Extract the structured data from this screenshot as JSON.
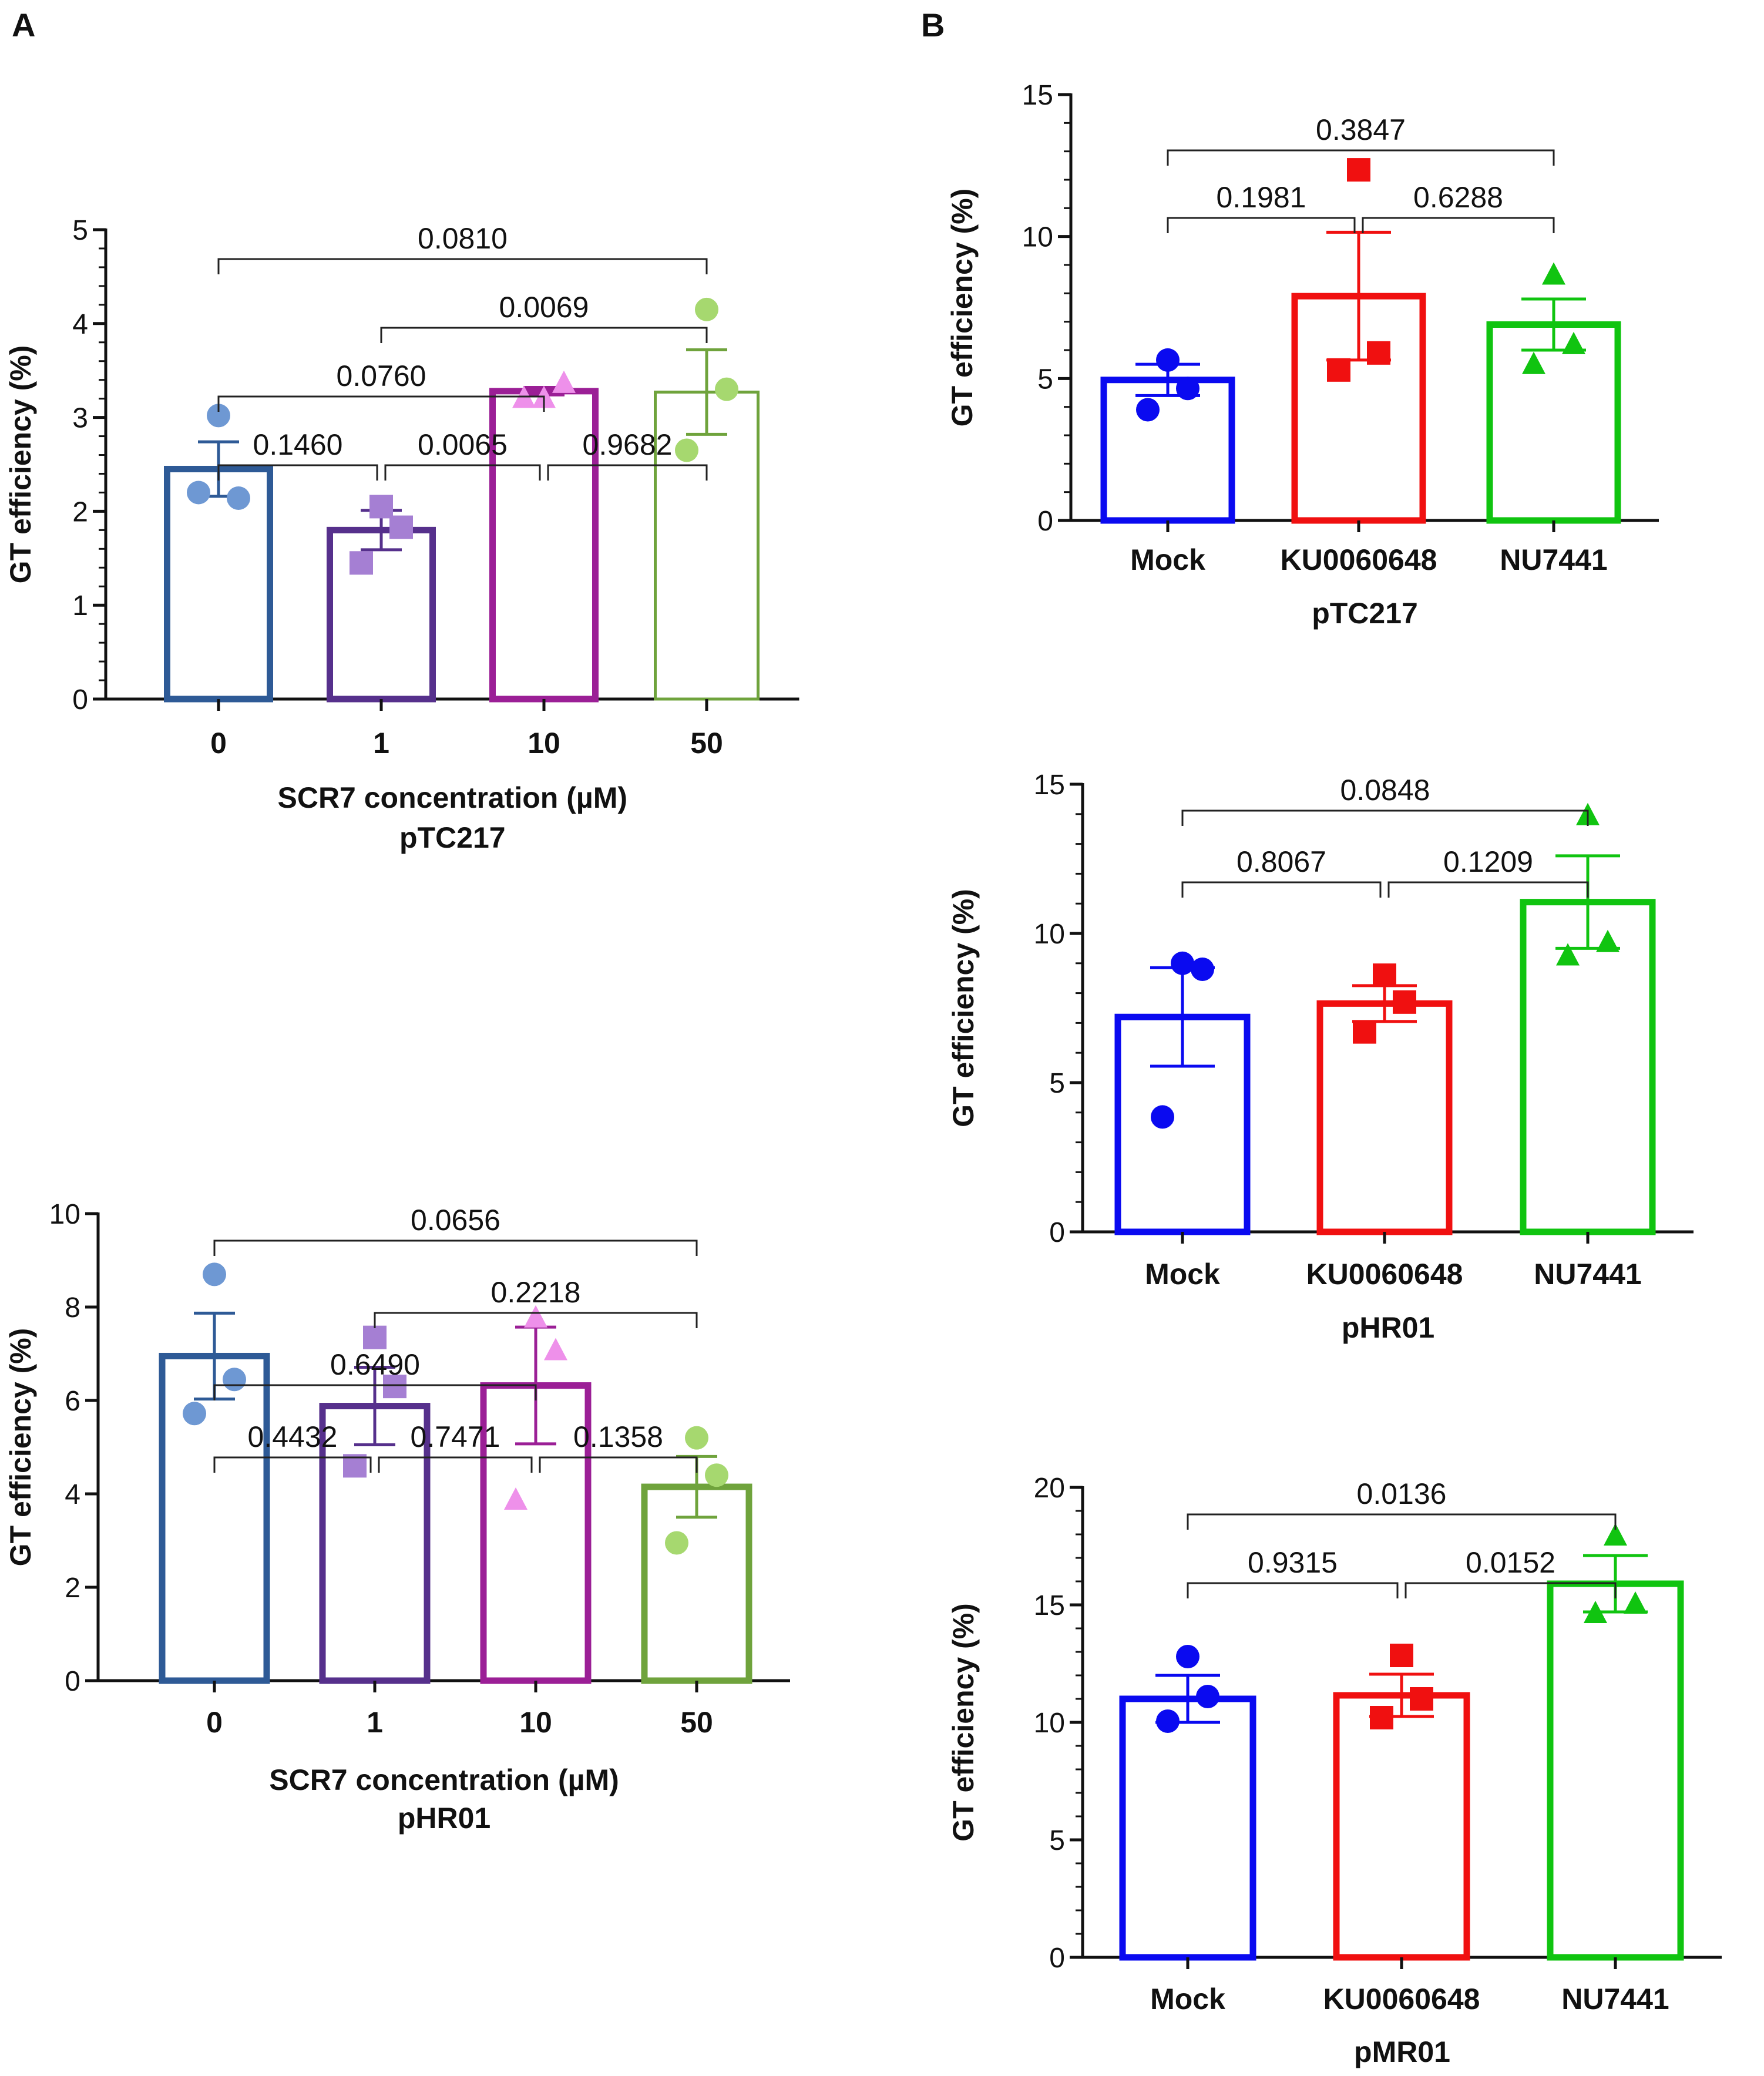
{
  "panel_labels": [
    "A",
    "B"
  ],
  "colors": {
    "A_bars": [
      "#2E5A96",
      "#56308C",
      "#9B1F96",
      "#6FA33C"
    ],
    "A_points": [
      "#6E98D3",
      "#A57FD3",
      "#EE90EA",
      "#A6D86F"
    ],
    "B_bars": [
      "#0A0AF0",
      "#F01010",
      "#10C410"
    ]
  },
  "chart_data": [
    {
      "id": "A1",
      "type": "bar",
      "title": "",
      "subtitle": "pTC217",
      "xlabel": "SCR7 concentration (µM)",
      "ylabel": "GT efficiency (%)",
      "categories": [
        "0",
        "1",
        "10",
        "50"
      ],
      "values": [
        2.45,
        1.8,
        3.28,
        3.27
      ],
      "sem": [
        0.29,
        0.21,
        0.04,
        0.45
      ],
      "points": [
        [
          3.02,
          2.14,
          2.2
        ],
        [
          2.05,
          1.83,
          1.45
        ],
        [
          3.22,
          3.38,
          3.22
        ],
        [
          4.15,
          3.3,
          2.65
        ]
      ],
      "markers": [
        "circle",
        "square",
        "triangle",
        "circle"
      ],
      "ylim": [
        0,
        5
      ],
      "yticks": [
        "0",
        "1",
        "2",
        "3",
        "4",
        "5"
      ],
      "minor_ticks": true,
      "comparisons": [
        {
          "from": 0,
          "to": 1,
          "label": "0.1460",
          "level": 0
        },
        {
          "from": 1,
          "to": 2,
          "label": "0.0065",
          "level": 0
        },
        {
          "from": 2,
          "to": 3,
          "label": "0.9682",
          "level": 0
        },
        {
          "from": 0,
          "to": 2,
          "label": "0.0760",
          "level": 1
        },
        {
          "from": 1,
          "to": 3,
          "label": "0.0069",
          "level": 2
        },
        {
          "from": 0,
          "to": 3,
          "label": "0.0810",
          "level": 3
        }
      ]
    },
    {
      "id": "A2",
      "type": "bar",
      "title": "",
      "subtitle": "pHR01",
      "xlabel": "SCR7 concentration (µM)",
      "ylabel": "GT efficiency (%)",
      "categories": [
        "0",
        "1",
        "10",
        "50"
      ],
      "values": [
        6.95,
        5.88,
        6.32,
        4.15
      ],
      "sem": [
        0.92,
        0.83,
        1.25,
        0.65
      ],
      "points": [
        [
          8.7,
          6.45,
          5.72
        ],
        [
          7.35,
          6.3,
          4.6
        ],
        [
          7.8,
          7.1,
          3.9
        ],
        [
          5.2,
          4.4,
          2.95
        ]
      ],
      "markers": [
        "circle",
        "square",
        "triangle",
        "circle"
      ],
      "ylim": [
        0,
        10
      ],
      "yticks": [
        "0",
        "2",
        "4",
        "6",
        "8",
        "10"
      ],
      "minor_ticks": false,
      "comparisons": [
        {
          "from": 0,
          "to": 1,
          "label": "0.4432",
          "level": 0
        },
        {
          "from": 1,
          "to": 2,
          "label": "0.7471",
          "level": 0
        },
        {
          "from": 2,
          "to": 3,
          "label": "0.1358",
          "level": 0
        },
        {
          "from": 0,
          "to": 2,
          "label": "0.6490",
          "level": 1
        },
        {
          "from": 1,
          "to": 3,
          "label": "0.2218",
          "level": 2
        },
        {
          "from": 0,
          "to": 3,
          "label": "0.0656",
          "level": 3
        }
      ]
    },
    {
      "id": "B1",
      "type": "bar",
      "title": "",
      "subtitle": "pTC217",
      "xlabel": "",
      "ylabel": "GT efficiency (%)",
      "categories": [
        "Mock",
        "KU0060648",
        "NU7441"
      ],
      "values": [
        4.95,
        7.9,
        6.9
      ],
      "sem": [
        0.55,
        2.25,
        0.9
      ],
      "points": [
        [
          5.65,
          4.65,
          3.9
        ],
        [
          12.35,
          5.9,
          5.3
        ],
        [
          8.7,
          6.25,
          5.55
        ]
      ],
      "markers": [
        "circle",
        "square",
        "triangle"
      ],
      "ylim": [
        0,
        15
      ],
      "yticks": [
        "0",
        "5",
        "10",
        "15"
      ],
      "minor_ticks": true,
      "comparisons": [
        {
          "from": 0,
          "to": 1,
          "label": "0.1981",
          "level": 0
        },
        {
          "from": 1,
          "to": 2,
          "label": "0.6288",
          "level": 0
        },
        {
          "from": 0,
          "to": 2,
          "label": "0.3847",
          "level": 1
        }
      ]
    },
    {
      "id": "B2",
      "type": "bar",
      "title": "",
      "subtitle": "pHR01",
      "xlabel": "",
      "ylabel": "GT efficiency (%)",
      "categories": [
        "Mock",
        "KU0060648",
        "NU7441"
      ],
      "values": [
        7.2,
        7.65,
        11.05
      ],
      "sem": [
        1.65,
        0.6,
        1.55
      ],
      "points": [
        [
          9.0,
          8.8,
          3.85
        ],
        [
          8.6,
          7.7,
          6.7
        ],
        [
          14.0,
          9.75,
          9.3
        ]
      ],
      "markers": [
        "circle",
        "square",
        "triangle"
      ],
      "ylim": [
        0,
        15
      ],
      "yticks": [
        "0",
        "5",
        "10",
        "15"
      ],
      "minor_ticks": true,
      "comparisons": [
        {
          "from": 0,
          "to": 1,
          "label": "0.8067",
          "level": 0
        },
        {
          "from": 1,
          "to": 2,
          "label": "0.1209",
          "level": 0
        },
        {
          "from": 0,
          "to": 2,
          "label": "0.0848",
          "level": 1
        }
      ]
    },
    {
      "id": "B3",
      "type": "bar",
      "title": "",
      "subtitle": "pMR01",
      "xlabel": "",
      "ylabel": "GT efficiency (%)",
      "categories": [
        "Mock",
        "KU0060648",
        "NU7441"
      ],
      "values": [
        11.0,
        11.15,
        15.9
      ],
      "sem": [
        1.0,
        0.9,
        1.2
      ],
      "points": [
        [
          12.8,
          11.1,
          10.05
        ],
        [
          12.85,
          11.0,
          10.2
        ],
        [
          18.0,
          15.1,
          14.7
        ]
      ],
      "markers": [
        "circle",
        "square",
        "triangle"
      ],
      "ylim": [
        0,
        20
      ],
      "yticks": [
        "0",
        "5",
        "10",
        "15",
        "20"
      ],
      "minor_ticks": true,
      "comparisons": [
        {
          "from": 0,
          "to": 1,
          "label": "0.9315",
          "level": 0
        },
        {
          "from": 1,
          "to": 2,
          "label": "0.0152",
          "level": 0
        },
        {
          "from": 0,
          "to": 2,
          "label": "0.0136",
          "level": 1
        }
      ]
    }
  ]
}
